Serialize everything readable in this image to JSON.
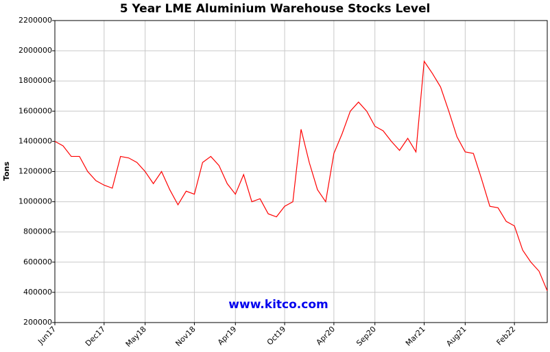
{
  "chart_data": {
    "type": "line",
    "title": "5 Year LME Aluminium Warehouse Stocks Level",
    "y_label": "Tons",
    "annotation": "www.kitco.com",
    "grid": true,
    "x": [
      "2017-06",
      "2017-07",
      "2017-08",
      "2017-09",
      "2017-10",
      "2017-11",
      "2017-12",
      "2018-01",
      "2018-02",
      "2018-03",
      "2018-04",
      "2018-05",
      "2018-06",
      "2018-07",
      "2018-08",
      "2018-09",
      "2018-10",
      "2018-11",
      "2018-12",
      "2019-01",
      "2019-02",
      "2019-03",
      "2019-04",
      "2019-05",
      "2019-06",
      "2019-07",
      "2019-08",
      "2019-09",
      "2019-10",
      "2019-11",
      "2019-12",
      "2020-01",
      "2020-02",
      "2020-03",
      "2020-04",
      "2020-05",
      "2020-06",
      "2020-07",
      "2020-08",
      "2020-09",
      "2020-10",
      "2020-11",
      "2020-12",
      "2021-01",
      "2021-02",
      "2021-03",
      "2021-04",
      "2021-05",
      "2021-06",
      "2021-07",
      "2021-08",
      "2021-09",
      "2021-10",
      "2021-11",
      "2021-12",
      "2022-01",
      "2022-02",
      "2022-03",
      "2022-04",
      "2022-05",
      "2022-06"
    ],
    "series": [
      {
        "name": "Tons",
        "color": "#ff0000",
        "values": [
          1400000,
          1370000,
          1300000,
          1300000,
          1200000,
          1140000,
          1110000,
          1090000,
          1300000,
          1290000,
          1260000,
          1200000,
          1120000,
          1200000,
          1080000,
          980000,
          1070000,
          1050000,
          1260000,
          1300000,
          1240000,
          1120000,
          1050000,
          1180000,
          1000000,
          1020000,
          920000,
          900000,
          970000,
          1000000,
          1480000,
          1260000,
          1080000,
          1000000,
          1320000,
          1450000,
          1600000,
          1660000,
          1600000,
          1500000,
          1470000,
          1400000,
          1340000,
          1420000,
          1330000,
          1930000,
          1850000,
          1760000,
          1600000,
          1430000,
          1330000,
          1320000,
          1150000,
          970000,
          960000,
          870000,
          840000,
          680000,
          600000,
          540000,
          410000
        ]
      }
    ],
    "xlim": [
      "2017-06",
      "2022-06"
    ],
    "xticks": [
      {
        "value": "2017-06",
        "label": "Jun17"
      },
      {
        "value": "2017-12",
        "label": "Dec17"
      },
      {
        "value": "2018-05",
        "label": "May18"
      },
      {
        "value": "2018-11",
        "label": "Nov18"
      },
      {
        "value": "2019-04",
        "label": "Apr19"
      },
      {
        "value": "2019-10",
        "label": "Oct19"
      },
      {
        "value": "2020-04",
        "label": "Apr20"
      },
      {
        "value": "2020-09",
        "label": "Sep20"
      },
      {
        "value": "2021-03",
        "label": "Mar21"
      },
      {
        "value": "2021-08",
        "label": "Aug21"
      },
      {
        "value": "2022-02",
        "label": "Feb22"
      }
    ],
    "ylim": [
      200000,
      2200000
    ],
    "yticks": [
      200000,
      400000,
      600000,
      800000,
      1000000,
      1200000,
      1400000,
      1600000,
      1800000,
      2000000,
      2200000
    ]
  }
}
